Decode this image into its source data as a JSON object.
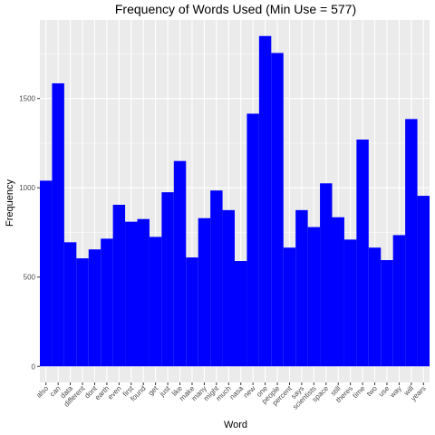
{
  "chart_data": {
    "type": "bar",
    "title": "Frequency of Words Used (Min Use = 577)",
    "xlabel": "Word",
    "ylabel": "Frequency",
    "ylim": [
      -90,
      1940
    ],
    "yticks": [
      0,
      500,
      1000,
      1500
    ],
    "grid": true,
    "bar_color": "#0000FF",
    "panel_color": "#EBEBEB",
    "categories": [
      "also",
      "can",
      "data",
      "different",
      "dont",
      "earth",
      "even",
      "first",
      "found",
      "get",
      "just",
      "like",
      "make",
      "many",
      "might",
      "much",
      "nasa",
      "new",
      "one",
      "people",
      "percent",
      "says",
      "scientists",
      "space",
      "still",
      "theres",
      "time",
      "two",
      "use",
      "way",
      "will",
      "years"
    ],
    "values": [
      1040,
      1585,
      695,
      605,
      655,
      715,
      905,
      810,
      825,
      725,
      975,
      1150,
      610,
      830,
      985,
      875,
      590,
      1415,
      1850,
      1755,
      665,
      875,
      780,
      1025,
      835,
      710,
      1270,
      665,
      595,
      735,
      1385,
      955
    ]
  }
}
